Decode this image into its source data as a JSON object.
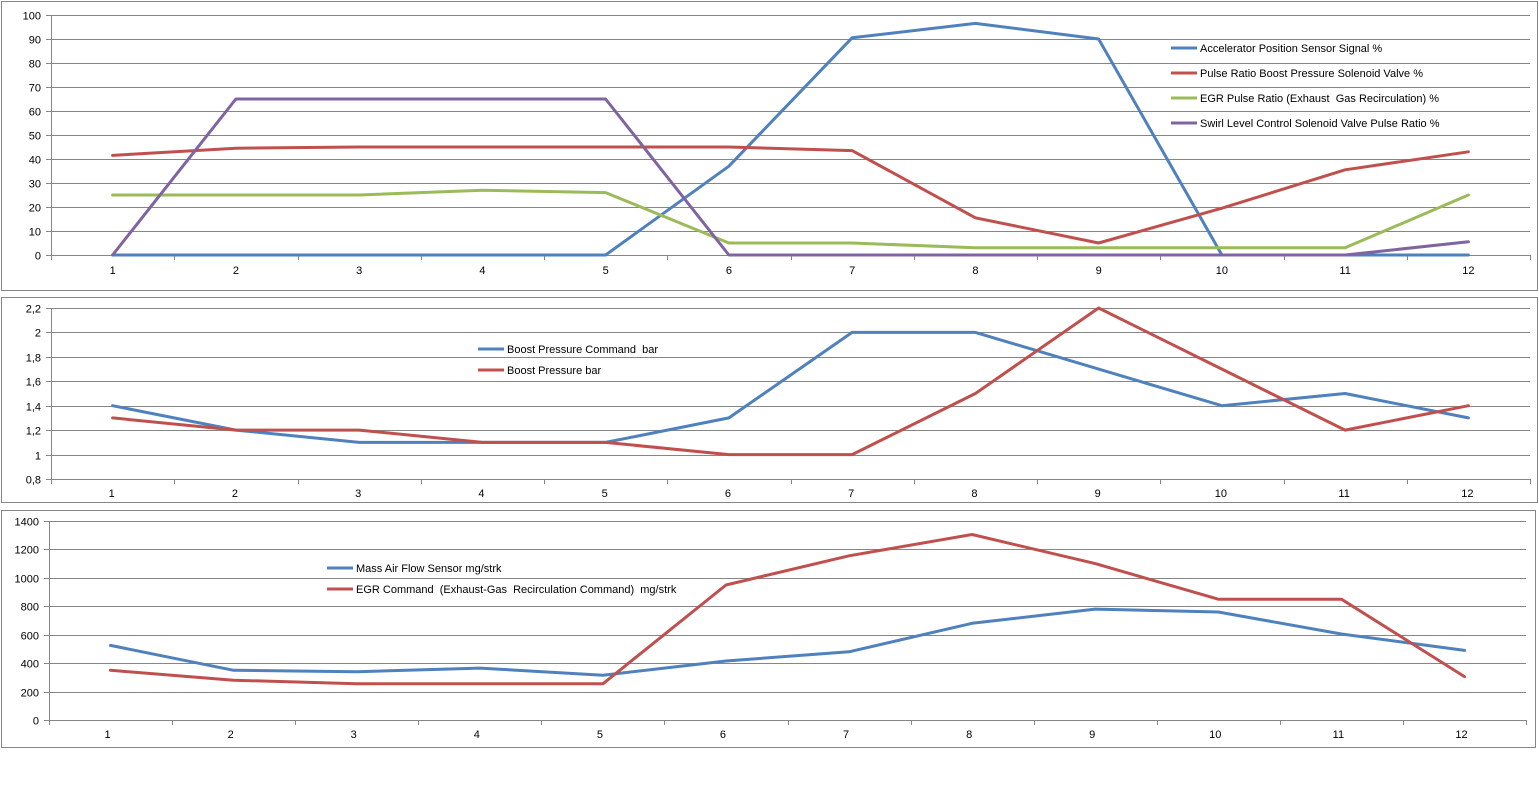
{
  "colors": {
    "blue": "#4F81BD",
    "red": "#C0504D",
    "green": "#9BBB59",
    "purple": "#8064A2",
    "grid": "#868686",
    "frame": "#868686"
  },
  "chart_data": [
    {
      "type": "line",
      "categories": [
        "1",
        "2",
        "3",
        "4",
        "5",
        "6",
        "7",
        "8",
        "9",
        "10",
        "11",
        "12"
      ],
      "ylim": [
        0,
        100
      ],
      "y_ticks": [
        "0",
        "10",
        "20",
        "30",
        "40",
        "50",
        "60",
        "70",
        "80",
        "90",
        "100"
      ],
      "y_tick_values": [
        0,
        10,
        20,
        30,
        40,
        50,
        60,
        70,
        80,
        90,
        100
      ],
      "grid": true,
      "legend_position": "top-right",
      "series": [
        {
          "name": "Accelerator Position Sensor Signal %",
          "color": "#4F81BD",
          "values": [
            0,
            0,
            0,
            0,
            0,
            37,
            90.5,
            96.5,
            90,
            0,
            0,
            0
          ]
        },
        {
          "name": "Pulse Ratio Boost Pressure Solenoid Valve %",
          "color": "#C0504D",
          "values": [
            41.5,
            44.5,
            45,
            45,
            45,
            45,
            43.5,
            15.5,
            5,
            19.5,
            35.5,
            43
          ]
        },
        {
          "name": "EGR Pulse Ratio (Exhaust  Gas Recirculation) %",
          "color": "#9BBB59",
          "values": [
            25,
            25,
            25,
            27,
            26,
            5,
            5,
            3,
            3,
            3,
            3,
            25
          ]
        },
        {
          "name": "Swirl Level Control Solenoid Valve Pulse Ratio %",
          "color": "#8064A2",
          "values": [
            0,
            65,
            65,
            65,
            65,
            0,
            0,
            0,
            0,
            0,
            0,
            5.5
          ]
        }
      ]
    },
    {
      "type": "line",
      "categories": [
        "1",
        "2",
        "3",
        "4",
        "5",
        "6",
        "7",
        "8",
        "9",
        "10",
        "11",
        "12"
      ],
      "ylim": [
        0.8,
        2.2
      ],
      "y_ticks": [
        "0,8",
        "1",
        "1,2",
        "1,4",
        "1,6",
        "1,8",
        "2",
        "2,2"
      ],
      "y_tick_values": [
        0.8,
        1,
        1.2,
        1.4,
        1.6,
        1.8,
        2,
        2.2
      ],
      "grid": true,
      "legend_position": "top-left",
      "series": [
        {
          "name": "Boost Pressure Command  bar",
          "color": "#4F81BD",
          "values": [
            1.4,
            1.2,
            1.1,
            1.1,
            1.1,
            1.3,
            2,
            2,
            1.7,
            1.4,
            1.5,
            1.3
          ]
        },
        {
          "name": "Boost Pressure bar",
          "color": "#C0504D",
          "values": [
            1.3,
            1.2,
            1.2,
            1.1,
            1.1,
            1,
            1,
            1.5,
            2.2,
            1.7,
            1.2,
            1.4
          ]
        }
      ]
    },
    {
      "type": "line",
      "categories": [
        "1",
        "2",
        "3",
        "4",
        "5",
        "6",
        "7",
        "8",
        "9",
        "10",
        "11",
        "12"
      ],
      "ylim": [
        0,
        1400
      ],
      "y_ticks": [
        "0",
        "200",
        "400",
        "600",
        "800",
        "1000",
        "1200",
        "1400"
      ],
      "y_tick_values": [
        0,
        200,
        400,
        600,
        800,
        1000,
        1200,
        1400
      ],
      "grid": true,
      "legend_position": "top-left",
      "series": [
        {
          "name": "Mass Air Flow Sensor mg/strk",
          "color": "#4F81BD",
          "values": [
            525,
            350,
            340,
            365,
            315,
            415,
            480,
            680,
            780,
            760,
            605,
            490
          ]
        },
        {
          "name": "EGR Command  (Exhaust-Gas  Recirculation Command)  mg/strk",
          "color": "#C0504D",
          "values": [
            350,
            280,
            255,
            255,
            255,
            950,
            1155,
            1305,
            1100,
            850,
            850,
            305
          ]
        }
      ]
    }
  ]
}
